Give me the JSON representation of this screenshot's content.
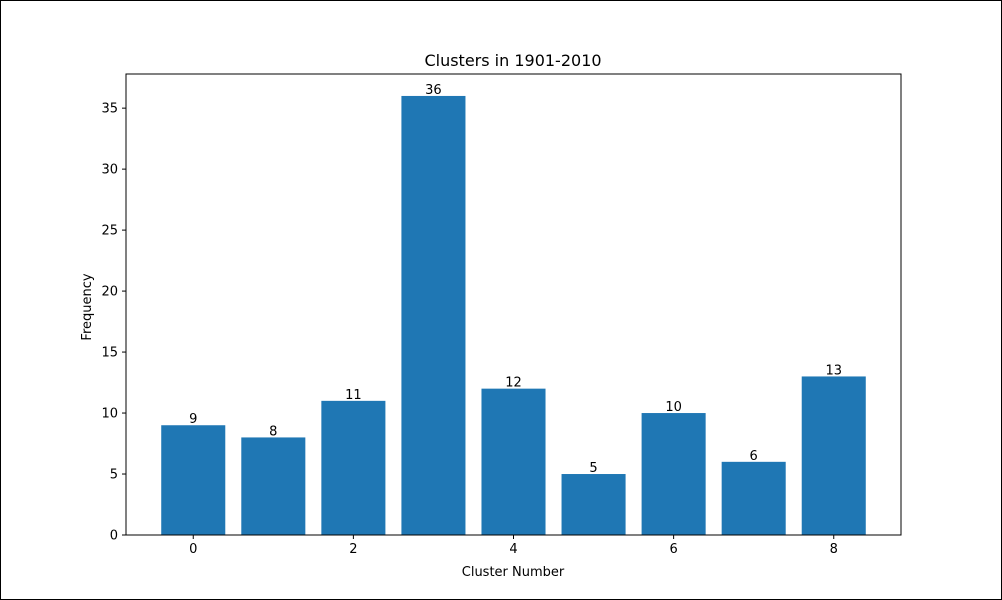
{
  "chart_data": {
    "type": "bar",
    "title": "Clusters in 1901-2010",
    "xlabel": "Cluster Number",
    "ylabel": "Frequency",
    "categories": [
      0,
      1,
      2,
      3,
      4,
      5,
      6,
      7,
      8
    ],
    "values": [
      9,
      8,
      11,
      36,
      12,
      5,
      10,
      6,
      13
    ],
    "data_labels": [
      "9",
      "8",
      "11",
      "36",
      "12",
      "5",
      "10",
      "6",
      "13"
    ],
    "xticks": [
      "0",
      "2",
      "4",
      "6",
      "8"
    ],
    "xtick_values": [
      0,
      2,
      4,
      6,
      8
    ],
    "yticks": [
      "0",
      "5",
      "10",
      "15",
      "20",
      "25",
      "30",
      "35"
    ],
    "ytick_values": [
      0,
      5,
      10,
      15,
      20,
      25,
      30,
      35
    ],
    "xlim": [
      -0.84,
      8.84
    ],
    "ylim": [
      0,
      37.8
    ],
    "bar_width": 0.8,
    "bar_color": "#1f77b4",
    "grid": false,
    "legend": "none"
  }
}
